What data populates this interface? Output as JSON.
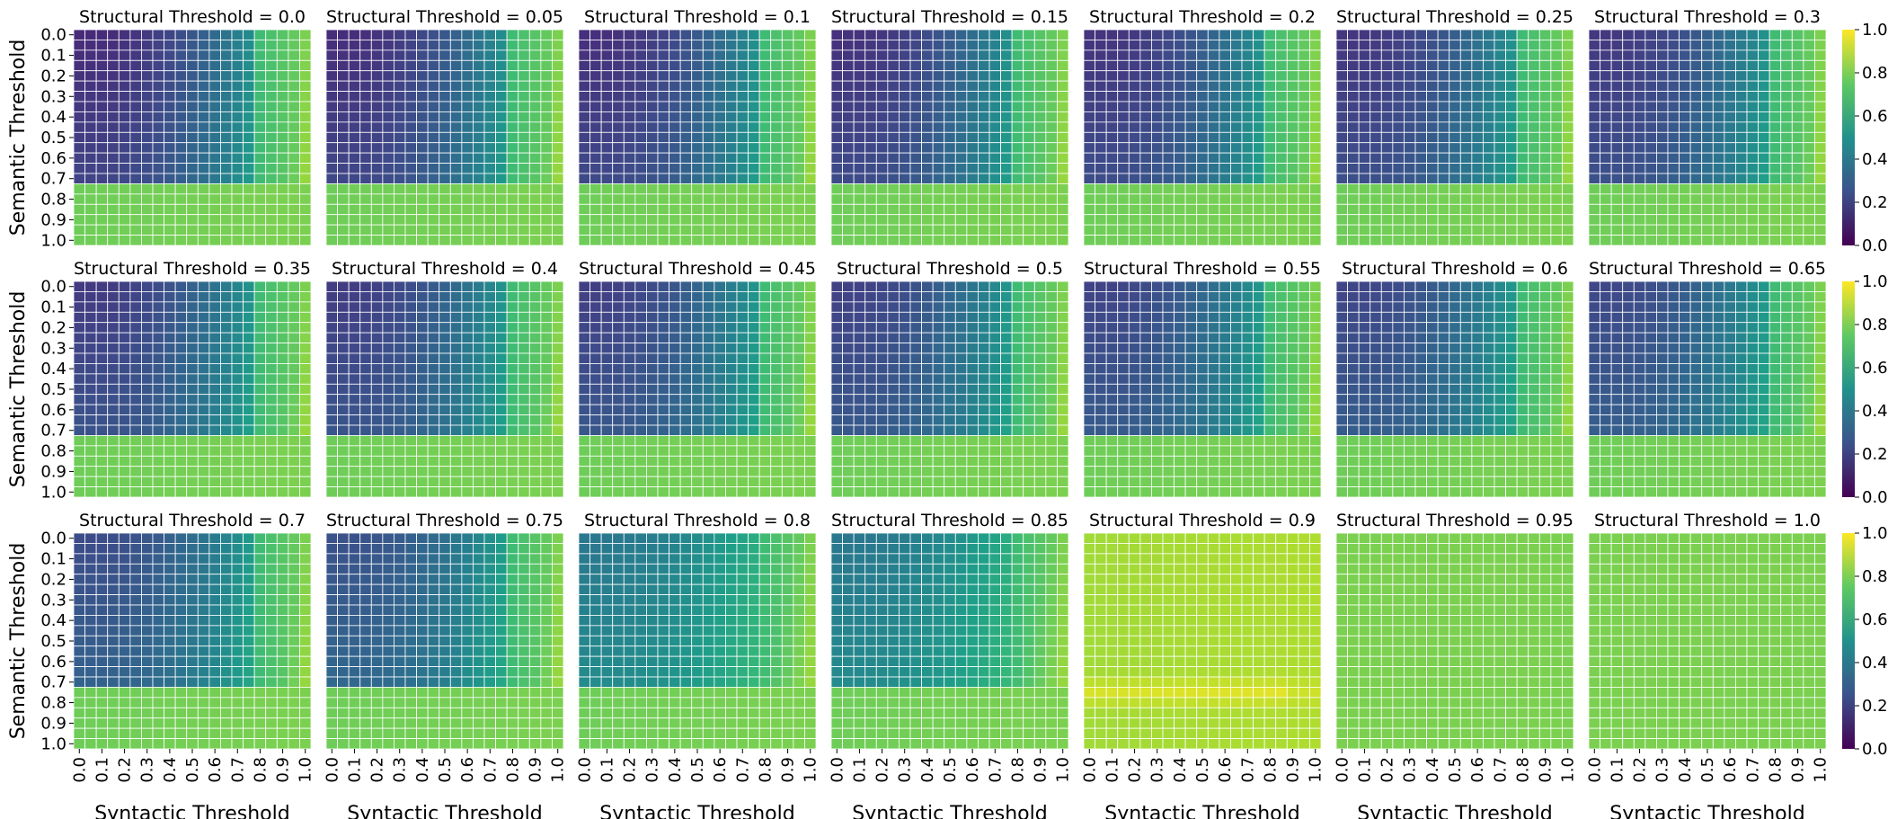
{
  "chart_data": {
    "type": "heatmap",
    "layout": {
      "rows": 3,
      "cols": 7
    },
    "colormap": "viridis",
    "vmin": 0.0,
    "vmax": 1.0,
    "colorbar_ticks": [
      "0.0",
      "0.2",
      "0.4",
      "0.6",
      "0.8",
      "1.0"
    ],
    "xlabel": "Syntactic Threshold",
    "ylabel": "Semantic Threshold",
    "x_ticks": [
      "0.0",
      "0.1",
      "0.2",
      "0.3",
      "0.4",
      "0.5",
      "0.6",
      "0.7",
      "0.8",
      "0.9",
      "1.0"
    ],
    "y_ticks": [
      "0.0",
      "0.1",
      "0.2",
      "0.3",
      "0.4",
      "0.5",
      "0.6",
      "0.7",
      "0.8",
      "0.9",
      "1.0"
    ],
    "grid_resolution": 21,
    "panels": [
      {
        "title": "Structural Threshold = 0.0",
        "structural": 0.0
      },
      {
        "title": "Structural Threshold = 0.05",
        "structural": 0.05
      },
      {
        "title": "Structural Threshold = 0.1",
        "structural": 0.1
      },
      {
        "title": "Structural Threshold = 0.15",
        "structural": 0.15
      },
      {
        "title": "Structural Threshold = 0.2",
        "structural": 0.2
      },
      {
        "title": "Structural Threshold = 0.25",
        "structural": 0.25
      },
      {
        "title": "Structural Threshold = 0.3",
        "structural": 0.3
      },
      {
        "title": "Structural Threshold = 0.35",
        "structural": 0.35
      },
      {
        "title": "Structural Threshold = 0.4",
        "structural": 0.4
      },
      {
        "title": "Structural Threshold = 0.45",
        "structural": 0.45
      },
      {
        "title": "Structural Threshold = 0.5",
        "structural": 0.5
      },
      {
        "title": "Structural Threshold = 0.55",
        "structural": 0.55
      },
      {
        "title": "Structural Threshold = 0.6",
        "structural": 0.6
      },
      {
        "title": "Structural Threshold = 0.65",
        "structural": 0.65
      },
      {
        "title": "Structural Threshold = 0.7",
        "structural": 0.7
      },
      {
        "title": "Structural Threshold = 0.75",
        "structural": 0.75
      },
      {
        "title": "Structural Threshold = 0.8",
        "structural": 0.8
      },
      {
        "title": "Structural Threshold = 0.85",
        "structural": 0.85
      },
      {
        "title": "Structural Threshold = 0.9",
        "structural": 0.9
      },
      {
        "title": "Structural Threshold = 0.95",
        "structural": 0.95
      },
      {
        "title": "Structural Threshold = 1.0",
        "structural": 1.0
      }
    ]
  }
}
